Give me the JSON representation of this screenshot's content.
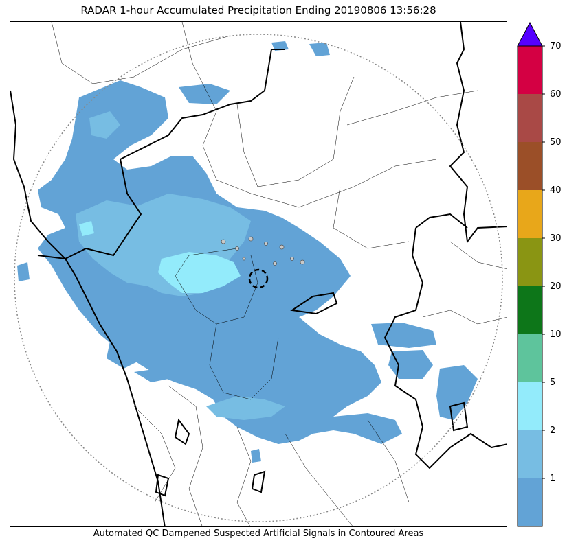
{
  "title": "RADAR 1-hour Accumulated Precipitation Ending 20190806 13:56:28",
  "caption": "Automated QC Dampened Suspected Artificial Signals in Contoured Areas",
  "colorbar": {
    "levels": [
      {
        "label": "",
        "color": "#62a3d6"
      },
      {
        "label": "1",
        "color": "#77bde3"
      },
      {
        "label": "2",
        "color": "#93ebfb"
      },
      {
        "label": "5",
        "color": "#5ec49c"
      },
      {
        "label": "10",
        "color": "#0d7619"
      },
      {
        "label": "20",
        "color": "#8a9513"
      },
      {
        "label": "30",
        "color": "#e8a71a"
      },
      {
        "label": "40",
        "color": "#9b4f28"
      },
      {
        "label": "50",
        "color": "#a94946"
      },
      {
        "label": "60",
        "color": "#d40043"
      },
      {
        "label": "70",
        "color": ""
      }
    ],
    "extend_color": "#5500ff"
  },
  "colors": {
    "light_precip": "#62a3d6",
    "moderate_precip": "#77bde3",
    "heavy_precip": "#93ebfb",
    "range_ring": "#888888",
    "borders": "#000000"
  }
}
